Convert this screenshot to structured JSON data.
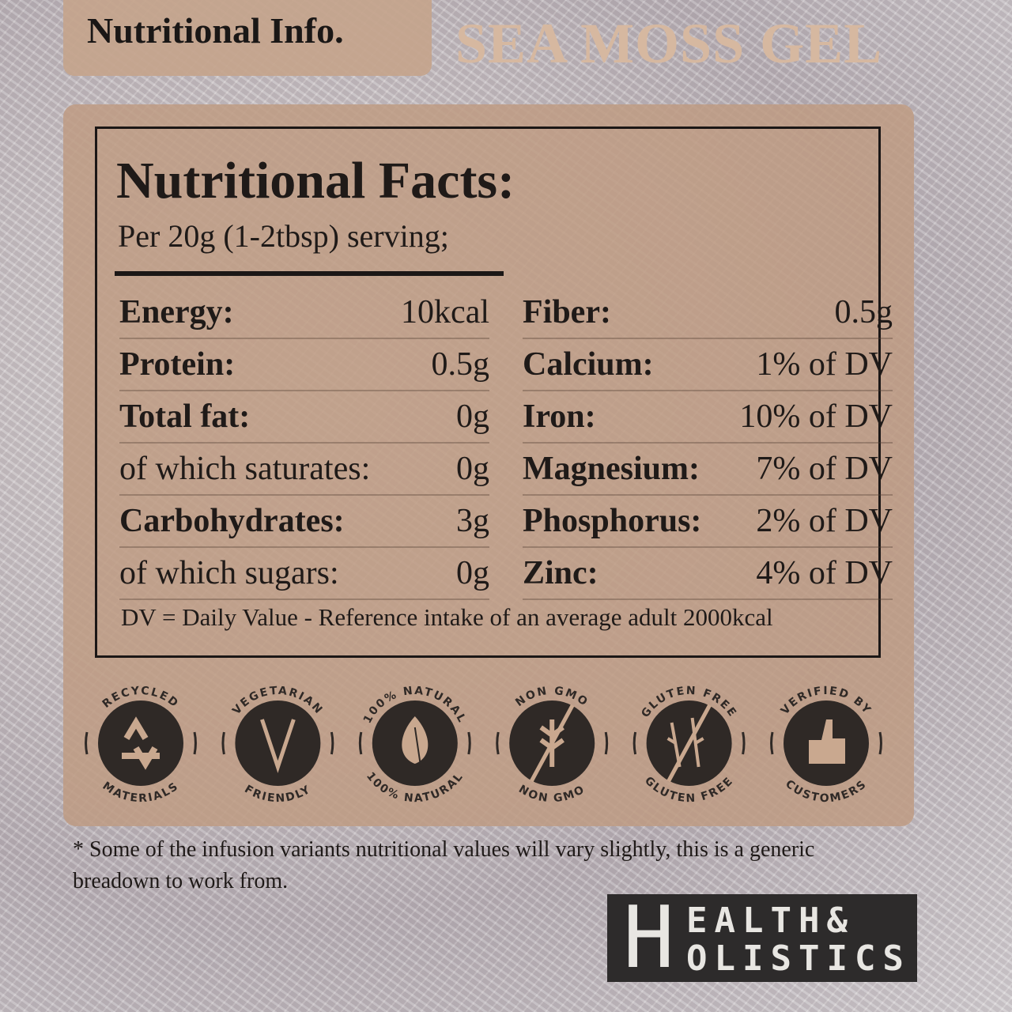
{
  "header": {
    "tab_label": "Nutritional Info.",
    "product_title": "SEA MOSS GEL"
  },
  "facts": {
    "title": "Nutritional Facts:",
    "serving": "Per 20g (1-2tbsp) serving;",
    "left": [
      {
        "label": "Energy:",
        "value": "10kcal",
        "bold": true
      },
      {
        "label": "Protein:",
        "value": "0.5g",
        "bold": true
      },
      {
        "label": "Total fat:",
        "value": "0g",
        "bold": true
      },
      {
        "label": "of which saturates:",
        "value": "0g",
        "bold": false
      },
      {
        "label": "Carbohydrates:",
        "value": "3g",
        "bold": true
      },
      {
        "label": "of which sugars:",
        "value": "0g",
        "bold": false
      }
    ],
    "right": [
      {
        "label": "Fiber:",
        "value": "0.5g"
      },
      {
        "label": "Calcium:",
        "value": "1% of DV"
      },
      {
        "label": "Iron:",
        "value": "10% of DV"
      },
      {
        "label": "Magnesium:",
        "value": "7% of DV"
      },
      {
        "label": "Phosphorus:",
        "value": "2% of DV"
      },
      {
        "label": "Zinc:",
        "value": "4% of DV"
      }
    ],
    "note": "DV = Daily Value - Reference intake of an average adult 2000kcal"
  },
  "badges": [
    {
      "top": "RECYCLED",
      "bottom": "MATERIALS",
      "icon": "recycle-icon"
    },
    {
      "top": "VEGETARIAN",
      "bottom": "FRIENDLY",
      "icon": "vegetarian-icon"
    },
    {
      "top": "100% NATURAL",
      "bottom": "100% NATURAL",
      "icon": "leaf-icon"
    },
    {
      "top": "NON GMO",
      "bottom": "NON GMO",
      "icon": "wheat-crossed-icon"
    },
    {
      "top": "GLUTEN FREE",
      "bottom": "GLUTEN FREE",
      "icon": "gluten-free-icon"
    },
    {
      "top": "VERIFIED BY",
      "bottom": "CUSTOMERS",
      "icon": "thumbs-up-icon"
    }
  ],
  "footnote": "* Some of the infusion variants nutritional values will vary slightly, this is a generic breadown to work from.",
  "logo": {
    "initial": "H",
    "line1": "EALTH&",
    "line2": "OLISTICS",
    "text": "HEALTH & HOLISTICS"
  },
  "colors": {
    "panel": "#c4a48c",
    "title_accent": "#d6b8a0",
    "ink": "#1b1716",
    "logo_bg": "#2d2b2b"
  }
}
